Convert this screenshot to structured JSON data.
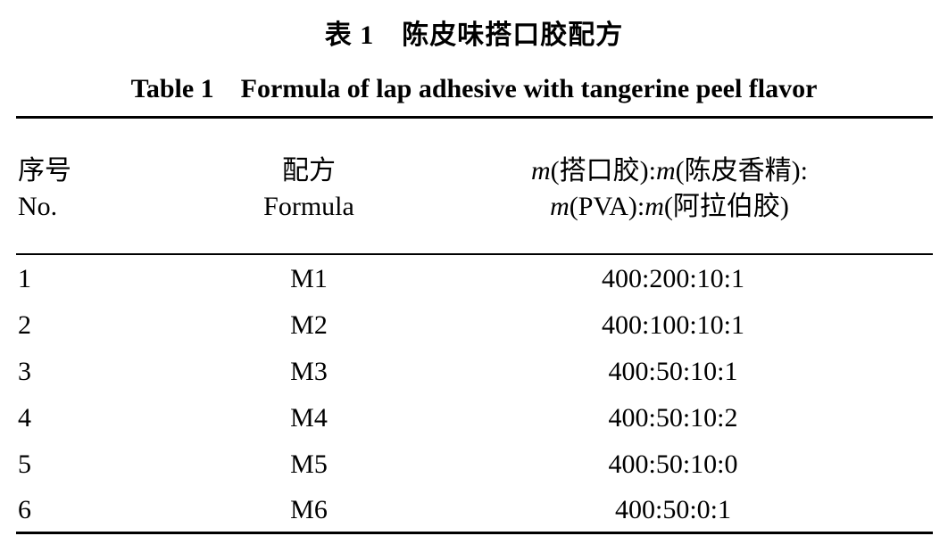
{
  "caption": {
    "cn": "表 1　陈皮味搭口胶配方",
    "en": "Table 1　Formula of lap adhesive with tangerine peel flavor"
  },
  "table": {
    "headers": {
      "no_cn": "序号",
      "no_en": "No.",
      "formula_cn": "配方",
      "formula_en": "Formula",
      "ratio_line1_m1": "m",
      "ratio_line1_a": "(搭口胶):",
      "ratio_line1_m2": "m",
      "ratio_line1_b": "(陈皮香精):",
      "ratio_line2_m1": "m",
      "ratio_line2_a": "(PVA):",
      "ratio_line2_m2": "m",
      "ratio_line2_b": "(阿拉伯胶)"
    },
    "rows": [
      {
        "no": "1",
        "formula": "M1",
        "ratio": "400:200:10:1"
      },
      {
        "no": "2",
        "formula": "M2",
        "ratio": "400:100:10:1"
      },
      {
        "no": "3",
        "formula": "M3",
        "ratio": "400:50:10:1"
      },
      {
        "no": "4",
        "formula": "M4",
        "ratio": "400:50:10:2"
      },
      {
        "no": "5",
        "formula": "M5",
        "ratio": "400:50:10:0"
      },
      {
        "no": "6",
        "formula": "M6",
        "ratio": "400:50:0:1"
      }
    ]
  }
}
